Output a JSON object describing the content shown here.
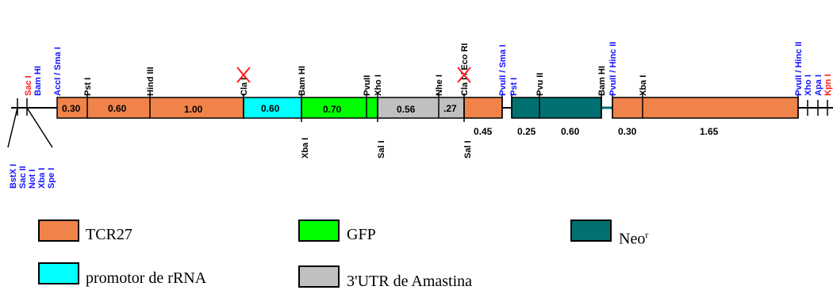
{
  "colors": {
    "TCR27": "#f0834a",
    "promotor": "#00ffff",
    "GFP": "#00ff00",
    "UTR": "#c0c0c0",
    "Neo": "#007070",
    "blue_site": "#1414ff",
    "red_site": "#ff1a1a"
  },
  "sites_top": {
    "sac": "Sac I",
    "bam_left": "Bam HI",
    "acc": "AccI / Sma I",
    "pst": "Pst I",
    "hind": "Hind III",
    "cla": "Cla I",
    "bam": "Bam HI",
    "pvull1": "PvuII",
    "xho": "Xho I",
    "nhe": "Nhe I",
    "cla_eco": "Cla I / Eco RI",
    "pvull_sma": "PvuII / Sma I",
    "pst2": "Pst I",
    "pvu2": "Pvu II",
    "bam2": "Bam HI",
    "pvull_hinc": "PvuII / Hinc II",
    "xba2": "Xba I",
    "pvull_hinc2": "PvuII / Hinc II",
    "xho2": "Xho I",
    "apa": "Apa I",
    "kpn": "Kpn I"
  },
  "sites_bottom": {
    "xba": "Xba I",
    "sal1": "Sal I",
    "sal2": "Sal I"
  },
  "polylinker": [
    "BstX I",
    "Sac II",
    "Not I",
    "Xba I",
    "Spe I"
  ],
  "segments": {
    "s1": "0.30",
    "s2": "0.60",
    "s3": "1.00",
    "s4": "0.60",
    "s5": "0.70",
    "s6": "0.56",
    "s7": ".27",
    "s8": "0.45",
    "s9": "0.25",
    "s10": "0.60",
    "s11": "0.30",
    "s12": "1.65"
  },
  "legend": {
    "tcr": "TCR27",
    "gfp": "GFP",
    "neo": "Neo",
    "neo_sup": "r",
    "prom": "promotor de rRNA",
    "utr": "3'UTR de Amastina"
  }
}
